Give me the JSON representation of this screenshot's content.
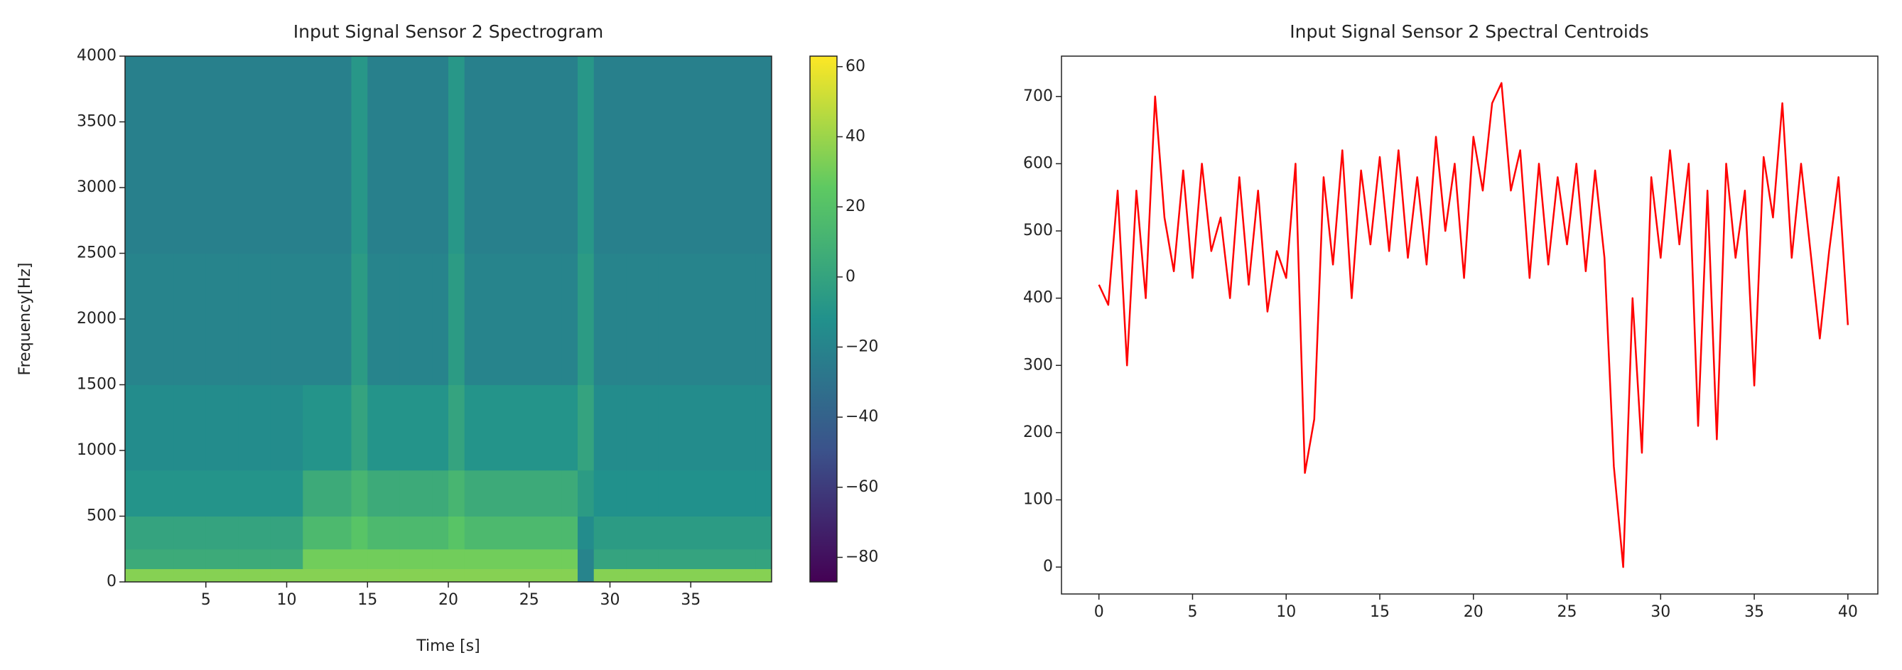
{
  "chart_data": [
    {
      "type": "heatmap",
      "title": "Input Signal Sensor 2 Spectrogram",
      "x_label": "Time [s]",
      "y_label": "Frequency[Hz]",
      "xlim": [
        0,
        40
      ],
      "xticks": [
        5,
        10,
        15,
        20,
        25,
        30,
        35
      ],
      "ylim": [
        0,
        4000
      ],
      "yticks": [
        0,
        500,
        1000,
        1500,
        2000,
        2500,
        3000,
        3500,
        4000
      ],
      "x_edges": [
        0,
        1,
        2,
        3,
        4,
        5,
        6,
        7,
        8,
        9,
        10,
        11,
        12,
        13,
        14,
        15,
        16,
        17,
        18,
        19,
        20,
        21,
        22,
        23,
        24,
        25,
        26,
        27,
        28,
        29,
        30,
        31,
        32,
        33,
        34,
        35,
        36,
        37,
        38,
        39,
        40
      ],
      "y_edges": [
        0,
        100,
        250,
        500,
        850,
        1500,
        2500,
        4000
      ],
      "values": [
        [
          35,
          35,
          35,
          35,
          35,
          35,
          35,
          35,
          35,
          35,
          35,
          35,
          35,
          35,
          35,
          35,
          35,
          35,
          35,
          35,
          35,
          35,
          35,
          35,
          35,
          35,
          35,
          35,
          -20,
          35,
          35,
          35,
          35,
          35,
          35,
          35,
          35,
          35,
          35,
          35
        ],
        [
          5,
          5,
          5,
          5,
          5,
          5,
          5,
          5,
          5,
          5,
          5,
          30,
          30,
          30,
          30,
          30,
          30,
          30,
          30,
          30,
          30,
          30,
          30,
          30,
          30,
          30,
          30,
          30,
          -20,
          0,
          0,
          0,
          0,
          0,
          0,
          0,
          0,
          0,
          0,
          0
        ],
        [
          0,
          0,
          0,
          0,
          0,
          0,
          0,
          0,
          0,
          0,
          0,
          15,
          15,
          15,
          22,
          15,
          15,
          15,
          15,
          15,
          22,
          15,
          15,
          15,
          15,
          15,
          15,
          15,
          -15,
          -5,
          -5,
          -5,
          -5,
          -5,
          -5,
          -5,
          -5,
          -5,
          -5,
          -5
        ],
        [
          -10,
          -10,
          -10,
          -10,
          -10,
          -10,
          -10,
          -10,
          -10,
          -10,
          -10,
          5,
          5,
          5,
          12,
          5,
          5,
          5,
          5,
          5,
          12,
          5,
          5,
          5,
          5,
          5,
          5,
          5,
          -5,
          -12,
          -12,
          -12,
          -12,
          -12,
          -12,
          -12,
          -12,
          -12,
          -12,
          -12
        ],
        [
          -15,
          -15,
          -15,
          -15,
          -15,
          -15,
          -15,
          -15,
          -15,
          -15,
          -15,
          -10,
          -10,
          -10,
          0,
          -10,
          -10,
          -10,
          -10,
          -10,
          0,
          -10,
          -10,
          -10,
          -10,
          -10,
          -10,
          -10,
          0,
          -15,
          -15,
          -15,
          -15,
          -15,
          -15,
          -15,
          -15,
          -15,
          -15,
          -15
        ],
        [
          -20,
          -20,
          -20,
          -20,
          -20,
          -20,
          -20,
          -20,
          -20,
          -20,
          -20,
          -20,
          -20,
          -20,
          -5,
          -20,
          -20,
          -20,
          -20,
          -20,
          -5,
          -20,
          -20,
          -20,
          -20,
          -20,
          -20,
          -20,
          -5,
          -20,
          -20,
          -20,
          -20,
          -20,
          -20,
          -20,
          -20,
          -20,
          -20,
          -20
        ],
        [
          -22,
          -22,
          -22,
          -22,
          -22,
          -22,
          -22,
          -22,
          -22,
          -22,
          -22,
          -22,
          -22,
          -22,
          -8,
          -22,
          -22,
          -22,
          -22,
          -22,
          -8,
          -22,
          -22,
          -22,
          -22,
          -22,
          -22,
          -22,
          -8,
          -22,
          -22,
          -22,
          -22,
          -22,
          -22,
          -22,
          -22,
          -22,
          -22,
          -22
        ]
      ],
      "zlim": [
        -87,
        63
      ],
      "zticks": [
        {
          "value": -80,
          "label": "−80"
        },
        {
          "value": -60,
          "label": "−60"
        },
        {
          "value": -40,
          "label": "−40"
        },
        {
          "value": -20,
          "label": "−20"
        },
        0,
        20,
        40,
        60
      ],
      "colormap": [
        "#440154",
        "#3b528b",
        "#21918c",
        "#5ec962",
        "#fde725"
      ]
    },
    {
      "type": "line",
      "title": "Input Signal Sensor 2 Spectral Centroids",
      "color": "#ff0000",
      "xlim": [
        -2,
        41.6
      ],
      "xticks": [
        0,
        5,
        10,
        15,
        20,
        25,
        30,
        35,
        40
      ],
      "ylim": [
        -40,
        760
      ],
      "yticks": [
        0,
        100,
        200,
        300,
        400,
        500,
        600,
        700
      ],
      "x": [
        0,
        0.5,
        1,
        1.5,
        2,
        2.5,
        3,
        3.5,
        4,
        4.5,
        5,
        5.5,
        6,
        6.5,
        7,
        7.5,
        8,
        8.5,
        9,
        9.5,
        10,
        10.5,
        11,
        11.5,
        12,
        12.5,
        13,
        13.5,
        14,
        14.5,
        15,
        15.5,
        16,
        16.5,
        17,
        17.5,
        18,
        18.5,
        19,
        19.5,
        20,
        20.5,
        21,
        21.5,
        22,
        22.5,
        23,
        23.5,
        24,
        24.5,
        25,
        25.5,
        26,
        26.5,
        27,
        27.5,
        28,
        28.5,
        29,
        29.5,
        30,
        30.5,
        31,
        31.5,
        32,
        32.5,
        33,
        33.5,
        34,
        34.5,
        35,
        35.5,
        36,
        36.5,
        37,
        37.5,
        38,
        38.5,
        39,
        39.5,
        40
      ],
      "values": [
        420,
        390,
        560,
        300,
        560,
        400,
        700,
        520,
        440,
        590,
        430,
        600,
        470,
        520,
        400,
        580,
        420,
        560,
        380,
        470,
        430,
        600,
        140,
        220,
        580,
        450,
        620,
        400,
        590,
        480,
        610,
        470,
        620,
        460,
        580,
        450,
        640,
        500,
        600,
        430,
        640,
        560,
        690,
        720,
        560,
        620,
        430,
        600,
        450,
        580,
        480,
        600,
        440,
        590,
        460,
        150,
        0,
        400,
        170,
        580,
        460,
        620,
        480,
        600,
        210,
        560,
        190,
        600,
        460,
        560,
        270,
        610,
        520,
        690,
        460,
        600,
        470,
        340,
        470,
        580,
        360
      ]
    }
  ]
}
